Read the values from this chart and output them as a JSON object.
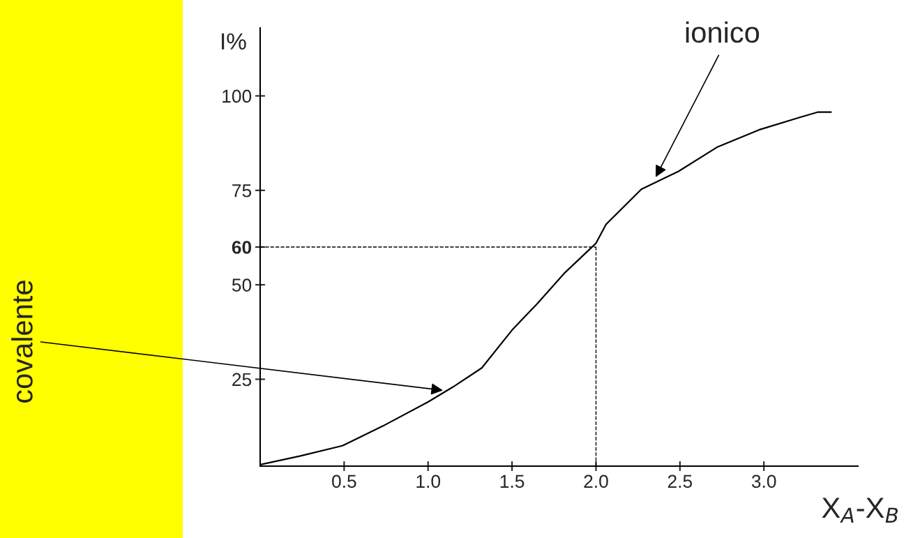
{
  "chart_data": {
    "type": "line",
    "xlabel": "X$_{A}$-X$_{B}$",
    "ylabel": "I%",
    "x": [
      0,
      0.24,
      0.49,
      0.73,
      1.0,
      1.15,
      1.32,
      1.5,
      1.65,
      1.81,
      2.0,
      2.06,
      2.27,
      2.49,
      2.72,
      2.97,
      3.22,
      3.32,
      3.4
    ],
    "series": [
      {
        "color": "#000000",
        "values": [
          2.4,
          4.7,
          7.4,
          12.6,
          19,
          23,
          28,
          38,
          45,
          53,
          61,
          66,
          75.3,
          80,
          86.4,
          91,
          94.4,
          95.7,
          95.7
        ]
      }
    ],
    "xlim": [
      0,
      3.56
    ],
    "ylim": [
      2,
      118
    ],
    "xticks": [
      0.5,
      {
        "value": 1,
        "label": "1.0"
      },
      1.5,
      {
        "value": 2,
        "label": "2.0"
      },
      2.5,
      {
        "value": 3,
        "label": "3.0"
      }
    ],
    "yticks": [
      25,
      50,
      60,
      75,
      100
    ],
    "ref_lines": [
      {
        "axis": "x",
        "value": 2,
        "line_style": "dashed",
        "color": "#000000"
      },
      {
        "axis": "y",
        "value": 60,
        "line_style": "dashed",
        "color": "#000000"
      }
    ],
    "annotations": [
      {
        "text": "ionico",
        "x": 2.35,
        "y": 78
      },
      {
        "text": "covalente",
        "x": 1.1,
        "y": 22
      }
    ],
    "grid": false,
    "legend": false,
    "marker": "none",
    "line_style": "solid"
  }
}
